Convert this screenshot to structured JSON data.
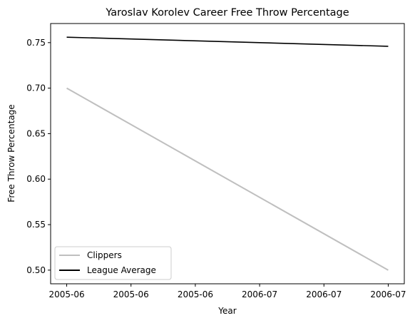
{
  "chart_data": {
    "type": "line",
    "title": "Yaroslav Korolev Career Free Throw Percentage",
    "xlabel": "Year",
    "ylabel": "Free Throw Percentage",
    "x_tick_labels": [
      "2005-06",
      "2005-06",
      "2005-06",
      "2006-07",
      "2006-07",
      "2006-07"
    ],
    "x_tick_positions": [
      0,
      0.2,
      0.4,
      0.6,
      0.8,
      1.0
    ],
    "xlim": [
      -0.05,
      1.05
    ],
    "ylim": [
      0.485,
      0.771
    ],
    "y_ticks": [
      0.5,
      0.55,
      0.6,
      0.65,
      0.7,
      0.75
    ],
    "y_tick_labels": [
      "0.50",
      "0.55",
      "0.60",
      "0.65",
      "0.70",
      "0.75"
    ],
    "grid": false,
    "legend_position": "lower-left",
    "series": [
      {
        "name": "Clippers",
        "color": "#bfbfbf",
        "x": [
          0,
          1
        ],
        "values": [
          0.7,
          0.5
        ]
      },
      {
        "name": "League Average",
        "color": "#000000",
        "x": [
          0,
          1
        ],
        "values": [
          0.756,
          0.746
        ]
      }
    ]
  }
}
